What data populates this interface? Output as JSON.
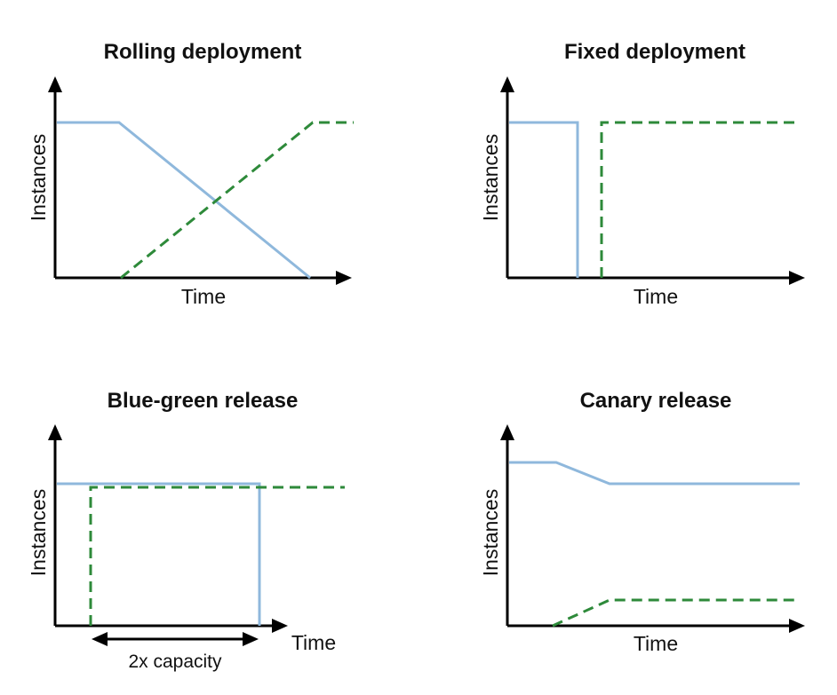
{
  "panels": {
    "rolling": {
      "title": "Rolling deployment",
      "ylabel": "Instances",
      "xlabel": "Time"
    },
    "fixed": {
      "title": "Fixed deployment",
      "ylabel": "Instances",
      "xlabel": "Time"
    },
    "bluegreen": {
      "title": "Blue-green release",
      "ylabel": "Instances",
      "xlabel": "Time",
      "capacity_label": "2x capacity"
    },
    "canary": {
      "title": "Canary release",
      "ylabel": "Instances",
      "xlabel": "Time"
    }
  },
  "colors": {
    "old_version": "#8fb8dc",
    "new_version": "#2e8a3a",
    "axis": "#000000"
  }
}
